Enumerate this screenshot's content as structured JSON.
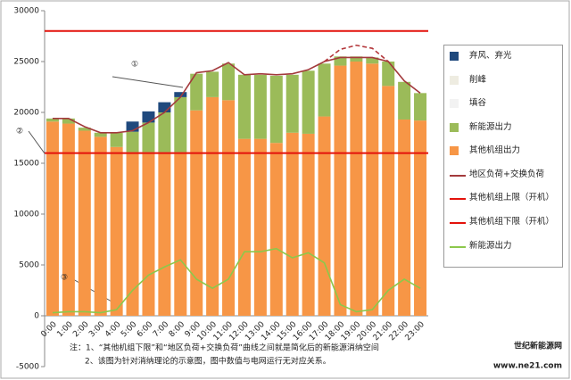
{
  "chart_data": {
    "type": "bar",
    "categories": [
      "0:00",
      "1:00",
      "2:00",
      "3:00",
      "4:00",
      "5:00",
      "6:00",
      "7:00",
      "8:00",
      "9:00",
      "10:00",
      "11:00",
      "12:00",
      "13:00",
      "14:00",
      "15:00",
      "16:00",
      "17:00",
      "18:00",
      "19:00",
      "20:00",
      "21:00",
      "22:00",
      "23:00"
    ],
    "series": [
      {
        "name": "弃风、弃光",
        "type": "bar",
        "color": "#1f497d",
        "values": [
          0,
          0,
          0,
          0,
          0,
          1000,
          1100,
          1000,
          500,
          0,
          0,
          0,
          0,
          0,
          0,
          0,
          0,
          0,
          0,
          0,
          0,
          0,
          0,
          0
        ]
      },
      {
        "name": "削峰",
        "type": "bar",
        "color": "#eeece1",
        "values": [
          0,
          0,
          0,
          0,
          0,
          0,
          0,
          0,
          0,
          0,
          0,
          0,
          0,
          0,
          0,
          0,
          0,
          0,
          0,
          0,
          0,
          0,
          0,
          0
        ]
      },
      {
        "name": "填谷",
        "type": "bar",
        "color": "#f2f2f2",
        "values": [
          0,
          0,
          0,
          0,
          0,
          0,
          0,
          0,
          0,
          0,
          0,
          0,
          0,
          0,
          0,
          0,
          0,
          0,
          0,
          0,
          0,
          0,
          0,
          0
        ]
      },
      {
        "name": "新能源出力",
        "type": "bar",
        "color": "#9bbb59",
        "values": [
          300,
          500,
          300,
          400,
          1400,
          2000,
          2900,
          3900,
          5400,
          3600,
          2500,
          3600,
          6300,
          6300,
          6600,
          5700,
          6200,
          5200,
          900,
          500,
          600,
          2400,
          3700,
          2700
        ]
      },
      {
        "name": "其他机组出力",
        "type": "bar",
        "color": "#f79646",
        "values": [
          19100,
          18900,
          18200,
          17600,
          16600,
          16100,
          16100,
          16100,
          16100,
          20200,
          21500,
          21200,
          17400,
          17400,
          17000,
          18000,
          17900,
          19600,
          24600,
          25000,
          24800,
          22600,
          19300,
          19200
        ]
      },
      {
        "name": "地区负荷+交换负荷",
        "type": "line",
        "color": "#a33a3c",
        "values": [
          19400,
          19400,
          18600,
          18000,
          18000,
          18200,
          19000,
          20000,
          21500,
          23900,
          24100,
          24900,
          23700,
          23800,
          23700,
          23800,
          24200,
          25000,
          25400,
          25400,
          25400,
          25000,
          23100,
          21900
        ]
      },
      {
        "name": "其他机组上限（开机）",
        "type": "line",
        "color": "#e3120b",
        "values": [
          28000,
          28000,
          28000,
          28000,
          28000,
          28000,
          28000,
          28000,
          28000,
          28000,
          28000,
          28000,
          28000,
          28000,
          28000,
          28000,
          28000,
          28000,
          28000,
          28000,
          28000,
          28000,
          28000,
          28000
        ]
      },
      {
        "name": "其他机组下限（开机）",
        "type": "line",
        "color": "#e3120b",
        "values": [
          16000,
          16000,
          16000,
          16000,
          16000,
          16000,
          16000,
          16000,
          16000,
          16000,
          16000,
          16000,
          16000,
          16000,
          16000,
          16000,
          16000,
          16000,
          16000,
          16000,
          16000,
          16000,
          16000,
          16000
        ]
      },
      {
        "name": "新能源出力",
        "type": "line",
        "color": "#8cc84b",
        "values": [
          300,
          400,
          400,
          300,
          600,
          2500,
          4000,
          4800,
          5500,
          3600,
          2700,
          3600,
          6300,
          6300,
          6600,
          5700,
          6200,
          5200,
          1100,
          400,
          600,
          2500,
          3600,
          2700
        ]
      },
      {
        "type": "line",
        "dashed": true,
        "color": "#b3363a",
        "values": [
          null,
          null,
          null,
          null,
          null,
          null,
          null,
          null,
          null,
          null,
          null,
          null,
          null,
          null,
          null,
          null,
          null,
          25000,
          26200,
          26600,
          26300,
          25000,
          null,
          null
        ]
      }
    ],
    "ylim": [
      -5000,
      30000
    ],
    "yticks": [
      -5000,
      0,
      5000,
      10000,
      15000,
      20000,
      25000,
      30000
    ],
    "annotations": [
      "①",
      "②",
      "③"
    ],
    "notes": [
      "注：1、“其他机组下限”和“地区负荷+交换负荷”曲线之间就是简化后的新能源消纳空间",
      "2、该图为针对消纳理论的示意图，图中数值与电网运行无对应关系。"
    ],
    "watermark": [
      "世纪新能源网",
      "www.ne21.com"
    ]
  }
}
